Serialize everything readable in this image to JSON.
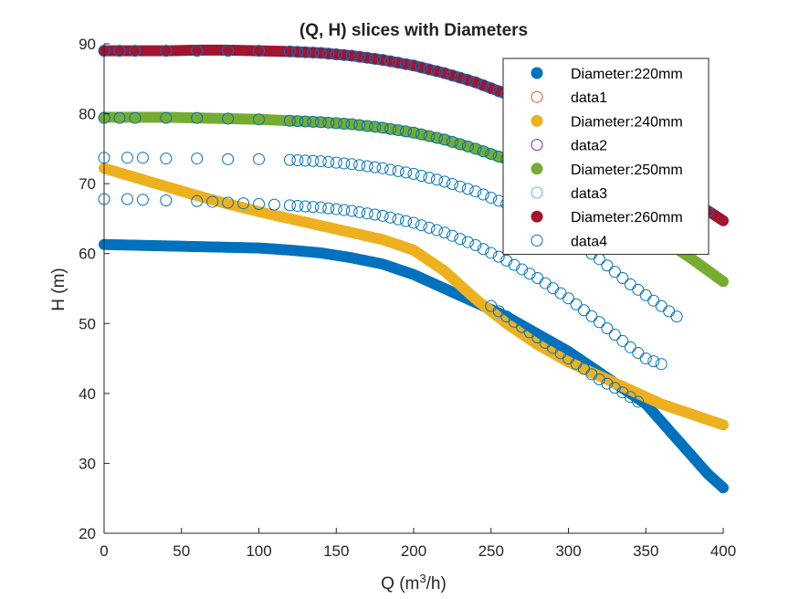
{
  "chart_data": {
    "type": "scatter",
    "title": "(Q, H) slices with Diameters",
    "xlabel_main": "Q (m",
    "xlabel_sup": "3",
    "xlabel_end": "/h)",
    "ylabel": "H (m)",
    "xlim": [
      0,
      400
    ],
    "ylim": [
      20,
      90
    ],
    "xticks": [
      "0",
      "50",
      "100",
      "150",
      "200",
      "250",
      "300",
      "350",
      "400"
    ],
    "yticks": [
      "20",
      "30",
      "40",
      "50",
      "60",
      "70",
      "80",
      "90"
    ],
    "grid": false,
    "legend_position": "top-right",
    "series": [
      {
        "name": "Diameter:220mm",
        "marker": "filled",
        "color": "#0072BD",
        "x": [
          0,
          20,
          40,
          60,
          80,
          100,
          120,
          140,
          160,
          180,
          200,
          220,
          240,
          260,
          280,
          300,
          320,
          340,
          350,
          360,
          370,
          380,
          390,
          400
        ],
        "y": [
          61.3,
          61.2,
          61.1,
          61.0,
          60.9,
          60.8,
          60.5,
          60.1,
          59.4,
          58.5,
          57.0,
          55.0,
          53.0,
          51.0,
          48.5,
          46.0,
          43.0,
          40.0,
          38.5,
          36.0,
          33.5,
          31.0,
          28.5,
          26.5
        ]
      },
      {
        "name": "data1",
        "marker": "open",
        "color": "#D95319",
        "x": [],
        "y": []
      },
      {
        "name": "Diameter:240mm",
        "marker": "filled",
        "color": "#EDB120",
        "x": [
          0,
          20,
          40,
          60,
          80,
          100,
          120,
          140,
          160,
          180,
          200,
          220,
          240,
          260,
          280,
          300,
          320,
          340,
          360,
          380,
          400
        ],
        "y": [
          72.2,
          70.9,
          69.6,
          68.3,
          67.1,
          66.0,
          65.0,
          64.0,
          63.0,
          62.0,
          60.5,
          57.5,
          53.5,
          50.0,
          47.0,
          44.5,
          42.5,
          40.5,
          38.5,
          37.0,
          35.5
        ]
      },
      {
        "name": "data2",
        "marker": "open",
        "color": "#7E2F8E",
        "x": [],
        "y": []
      },
      {
        "name": "Diameter:250mm",
        "marker": "filled",
        "color": "#77AC30",
        "x": [
          0,
          20,
          40,
          60,
          80,
          100,
          120,
          140,
          160,
          180,
          200,
          220,
          240,
          260,
          280,
          300,
          320,
          340,
          360,
          380,
          400
        ],
        "y": [
          79.5,
          79.5,
          79.5,
          79.4,
          79.3,
          79.2,
          79.0,
          78.8,
          78.5,
          78.0,
          77.3,
          76.3,
          75.0,
          73.5,
          71.8,
          69.8,
          67.5,
          65.0,
          62.2,
          59.2,
          56.0
        ]
      },
      {
        "name": "data3",
        "marker": "open",
        "color": "#4DBEEE",
        "x": [],
        "y": []
      },
      {
        "name": "Diameter:260mm",
        "marker": "filled",
        "color": "#A2142F",
        "x": [
          0,
          20,
          40,
          60,
          80,
          100,
          120,
          140,
          160,
          180,
          200,
          220,
          240,
          260,
          280,
          300,
          320,
          340,
          360,
          380,
          400
        ],
        "y": [
          89.0,
          89.0,
          89.0,
          89.1,
          89.1,
          89.0,
          88.9,
          88.7,
          88.3,
          87.7,
          86.9,
          85.8,
          84.5,
          82.8,
          80.8,
          78.5,
          76.0,
          73.3,
          70.5,
          67.6,
          64.7
        ]
      },
      {
        "name": "data4",
        "marker": "open",
        "color": "#0072BD",
        "x": [
          0,
          10,
          20,
          40,
          60,
          80,
          100,
          120,
          140,
          160,
          180,
          200,
          220,
          240,
          260,
          280,
          300,
          320,
          340,
          350,
          360,
          370,
          380,
          390
        ],
        "y": [
          89.0,
          89.0,
          89.0,
          89.0,
          89.0,
          89.0,
          89.0,
          88.9,
          88.7,
          88.3,
          87.7,
          86.9,
          85.8,
          84.5,
          82.8,
          80.8,
          78.5,
          76.0,
          73.3,
          71.9,
          70.5,
          69.0,
          67.6,
          66.0
        ]
      }
    ],
    "extra_open_curves": [
      {
        "color": "#0072BD",
        "x": [
          0,
          10,
          20,
          40,
          60,
          80,
          100,
          120,
          140,
          160,
          180,
          200,
          220,
          240,
          260,
          280,
          300,
          320,
          340,
          350
        ],
        "y": [
          79.4,
          79.4,
          79.4,
          79.4,
          79.4,
          79.3,
          79.2,
          79.0,
          78.8,
          78.5,
          78.0,
          77.3,
          76.3,
          75.0,
          73.5,
          71.8,
          69.8,
          67.5,
          65.0,
          63.6
        ]
      },
      {
        "color": "#0072BD",
        "x": [
          0,
          15,
          25,
          40,
          60,
          80,
          100,
          120,
          130,
          140,
          150,
          160,
          180,
          200,
          220,
          240,
          260,
          280,
          300,
          320,
          340,
          360,
          370
        ],
        "y": [
          73.7,
          73.7,
          73.7,
          73.6,
          73.6,
          73.5,
          73.5,
          73.4,
          73.3,
          73.2,
          73.0,
          72.8,
          72.2,
          71.4,
          70.3,
          68.9,
          67.1,
          64.9,
          62.3,
          59.2,
          55.6,
          52.5,
          51.0
        ]
      },
      {
        "color": "#0072BD",
        "x": [
          0,
          15,
          25,
          40,
          60,
          70,
          80,
          90,
          100,
          110,
          120,
          140,
          160,
          180,
          200,
          220,
          240,
          260,
          280,
          300,
          320,
          340,
          350,
          360
        ],
        "y": [
          67.8,
          67.8,
          67.7,
          67.6,
          67.5,
          67.4,
          67.3,
          67.2,
          67.1,
          67.0,
          66.9,
          66.6,
          66.1,
          65.4,
          64.4,
          63.0,
          61.2,
          59.0,
          56.5,
          53.6,
          50.2,
          46.6,
          45.0,
          44.2
        ]
      },
      {
        "color": "#0072BD",
        "x": [
          250,
          260,
          270,
          280,
          290,
          300,
          310,
          320,
          330,
          340,
          345
        ],
        "y": [
          52.5,
          51.0,
          49.5,
          48.0,
          46.5,
          45.0,
          43.5,
          42.0,
          40.8,
          39.5,
          38.8
        ]
      }
    ]
  }
}
